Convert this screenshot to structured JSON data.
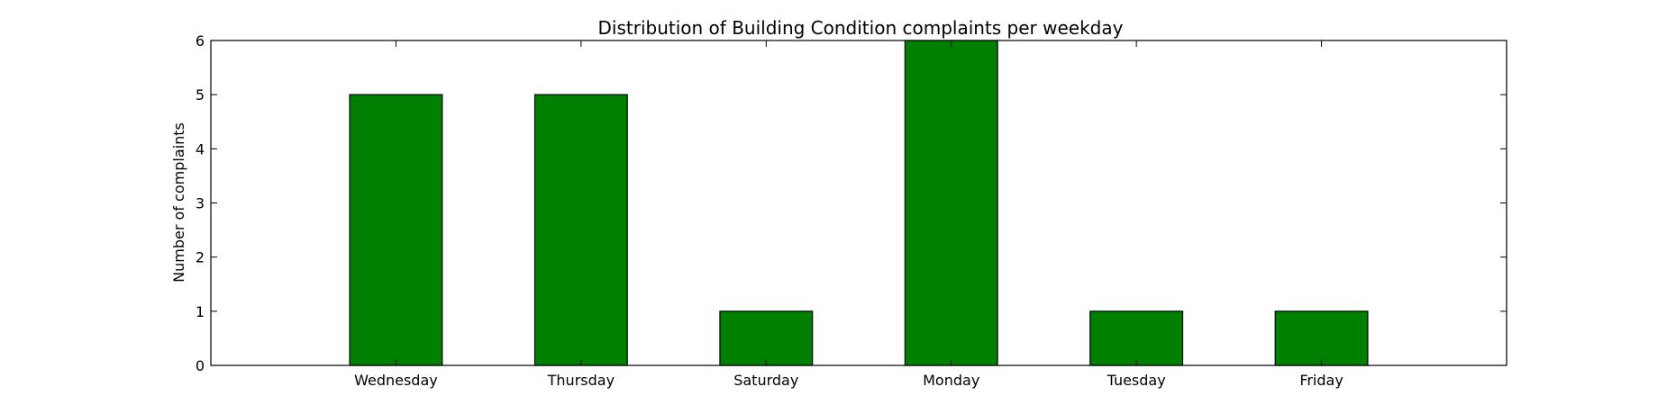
{
  "chart_data": {
    "type": "bar",
    "title": "Distribution of  Building Condition complaints per weekday",
    "xlabel": "",
    "ylabel": "Number of complaints",
    "categories": [
      "Wednesday",
      "Thursday",
      "Saturday",
      "Monday",
      "Tuesday",
      "Friday"
    ],
    "values": [
      5,
      5,
      1,
      6,
      1,
      1
    ],
    "ylim": [
      0,
      6
    ],
    "yticks": [
      0,
      1,
      2,
      3,
      4,
      5,
      6
    ],
    "grid": false,
    "bar_color": "#008000",
    "edge_color": "#000000"
  }
}
